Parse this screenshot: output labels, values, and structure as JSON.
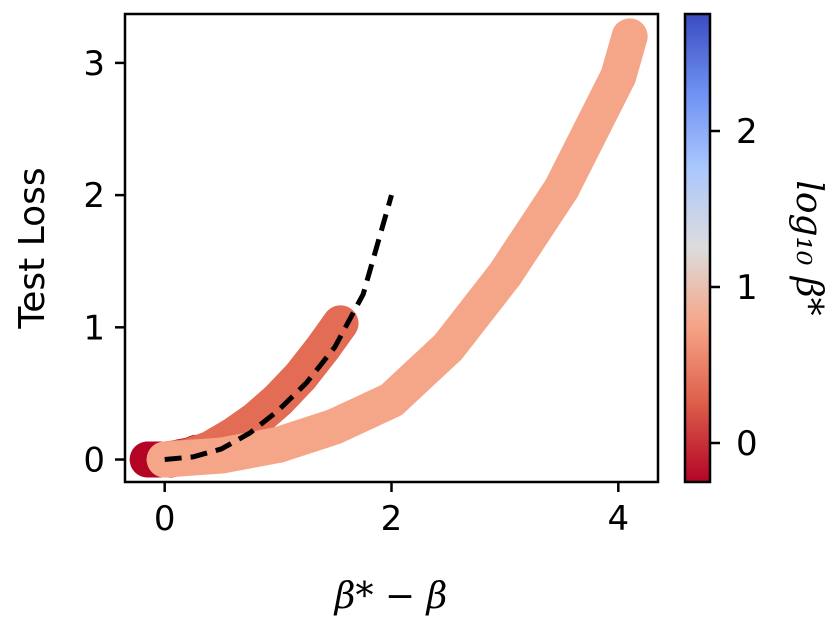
{
  "chart_data": {
    "type": "scatter",
    "title": "",
    "xlabel": "β* − β",
    "ylabel": "Test Loss",
    "xlim": [
      -0.35,
      4.35
    ],
    "ylim": [
      -0.17,
      3.37
    ],
    "xticks": [
      "0",
      "2",
      "4"
    ],
    "yticks": [
      "0",
      "1",
      "2",
      "3"
    ],
    "grid": false,
    "colorbar": {
      "label": "log₁₀ β*",
      "range": [
        -0.25,
        2.75
      ],
      "ticks": [
        "0",
        "1",
        "2"
      ],
      "colormap": "coolwarm",
      "colors": [
        "#b40426",
        "#dd5f4b",
        "#f6a385",
        "#dddcdc",
        "#aac7fd",
        "#6f92f3",
        "#3b4cc0"
      ]
    },
    "series": [
      {
        "log10_beta_star": 0.0,
        "color": "#b40426",
        "x": [
          -0.15,
          -0.08,
          0.0,
          0.05,
          0.1,
          0.15,
          0.22,
          0.28
        ],
        "y": [
          0.0,
          0.0,
          0.0,
          0.0,
          0.01,
          0.02,
          0.03,
          0.05
        ]
      },
      {
        "log10_beta_star": 0.3,
        "color": "#e36c55",
        "x": [
          0.0,
          0.2,
          0.4,
          0.6,
          0.8,
          1.0,
          1.2,
          1.4,
          1.55
        ],
        "y": [
          0.0,
          0.02,
          0.08,
          0.18,
          0.3,
          0.45,
          0.63,
          0.85,
          1.03
        ]
      },
      {
        "log10_beta_star": 0.7,
        "color": "#f6a688",
        "x": [
          0.0,
          0.5,
          1.0,
          1.5,
          2.0,
          2.5,
          3.0,
          3.5,
          4.0,
          4.1
        ],
        "y": [
          0.0,
          0.03,
          0.11,
          0.25,
          0.45,
          0.85,
          1.4,
          2.05,
          2.9,
          3.2
        ]
      }
    ],
    "reference_curve": {
      "style": "dashed",
      "color": "#000000",
      "x": [
        0.0,
        0.25,
        0.5,
        0.75,
        1.0,
        1.25,
        1.5,
        1.75,
        2.0
      ],
      "y": [
        0.0,
        0.02,
        0.08,
        0.2,
        0.37,
        0.58,
        0.85,
        1.25,
        2.0
      ]
    }
  }
}
